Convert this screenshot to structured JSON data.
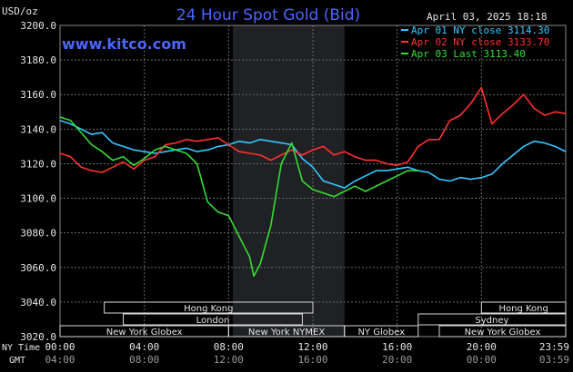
{
  "chart_data": {
    "type": "line",
    "title": "24 Hour Spot Gold (Bid)",
    "ylabel": "USD/oz",
    "watermark": "www.kitco.com",
    "date_label": "April 03, 2025 18:18",
    "ylim": [
      3020,
      3200
    ],
    "y_ticks": [
      "3200.0",
      "3180.0",
      "3160.0",
      "3140.0",
      "3120.0",
      "3100.0",
      "3080.0",
      "3060.0",
      "3040.0",
      "3020.0"
    ],
    "x_axis": {
      "row1_label": "NY Time",
      "row2_label": "GMT",
      "ny_ticks": [
        "00:00",
        "04:00",
        "08:00",
        "12:00",
        "16:00",
        "20:00",
        "23:59"
      ],
      "gmt_ticks": [
        "04:00",
        "08:00",
        "12:00",
        "16:00",
        "20:00",
        "00:00",
        "03:59"
      ],
      "tick_hours": [
        0,
        4,
        8,
        12,
        16,
        20,
        24
      ]
    },
    "grid": true,
    "legend_position": "top-right",
    "colors": {
      "grid": "#6a6a6a",
      "title": "#4a66ff",
      "watermark": "#4a66ff",
      "axis_text": "#e6e6e6",
      "shade": "#1f2124",
      "session_border": "#d8d8d8"
    },
    "legend": [
      {
        "name": "Apr 01 NY close 3114.30",
        "color": "#33c8ff"
      },
      {
        "name": "Apr 02 NY close 3133.70",
        "color": "#ff3030"
      },
      {
        "name": "Apr 03 Last 3113.40",
        "color": "#33dd33"
      }
    ],
    "sessions": [
      {
        "name": "Hong Kong",
        "row": 1,
        "start": 2.1,
        "end": 12.0
      },
      {
        "name": "Hong Kong",
        "row": 1,
        "start": 20.0,
        "end": 24.0
      },
      {
        "name": "London",
        "row": 2,
        "start": 3.0,
        "end": 11.5
      },
      {
        "name": "Sydney",
        "row": 2,
        "start": 17.0,
        "end": 24.0
      },
      {
        "name": "New York Globex",
        "row": 3,
        "start": 0.0,
        "end": 8.0
      },
      {
        "name": "New York NYMEX",
        "row": 3,
        "start": 8.0,
        "end": 13.5
      },
      {
        "name": "NY Globex",
        "row": 3,
        "start": 13.5,
        "end": 17.0
      },
      {
        "name": "New York Globex",
        "row": 3,
        "start": 18.0,
        "end": 24.0
      }
    ],
    "shaded_hours": [
      8.2,
      13.5
    ],
    "series": [
      {
        "name": "Apr 01 NY close 3114.30",
        "color": "#33c8ff",
        "x": [
          0,
          0.5,
          1,
          1.5,
          2,
          2.5,
          3,
          3.5,
          4,
          4.5,
          5,
          5.5,
          6,
          6.5,
          7,
          7.5,
          8,
          8.5,
          9,
          9.5,
          10,
          10.5,
          11,
          11.5,
          12,
          12.5,
          13,
          13.5,
          14,
          14.5,
          15,
          15.5,
          16,
          16.5,
          17,
          17.5,
          18,
          18.5,
          19,
          19.5,
          20,
          20.5,
          21,
          21.5,
          22,
          22.5,
          23,
          23.5,
          24
        ],
        "y": [
          3145,
          3143,
          3140,
          3137,
          3138,
          3132,
          3130,
          3128,
          3127,
          3126,
          3127,
          3128,
          3129,
          3127,
          3128,
          3130,
          3131,
          3133,
          3132,
          3134,
          3133,
          3132,
          3131,
          3123,
          3118,
          3110,
          3108,
          3106,
          3110,
          3113,
          3116,
          3116,
          3117,
          3118,
          3116,
          3115,
          3111,
          3110,
          3112,
          3111,
          3112,
          3114,
          3120,
          3125,
          3130,
          3133,
          3132,
          3130,
          3127
        ]
      },
      {
        "name": "Apr 02 NY close 3133.70",
        "color": "#ff3030",
        "x": [
          0,
          0.5,
          1,
          1.5,
          2,
          2.5,
          3,
          3.5,
          4,
          4.5,
          5,
          5.5,
          6,
          6.5,
          7,
          7.5,
          8,
          8.5,
          9,
          9.5,
          10,
          10.5,
          11,
          11.5,
          12,
          12.5,
          13,
          13.5,
          14,
          14.5,
          15,
          15.5,
          16,
          16.5,
          17,
          17.5,
          18,
          18.5,
          19,
          19.5,
          20,
          20.5,
          21,
          21.5,
          22,
          22.5,
          23,
          23.5,
          24
        ],
        "y": [
          3126,
          3124,
          3118,
          3116,
          3115,
          3118,
          3121,
          3117,
          3122,
          3124,
          3131,
          3132,
          3134,
          3133,
          3134,
          3135,
          3131,
          3127,
          3126,
          3125,
          3122,
          3125,
          3128,
          3125,
          3128,
          3130,
          3125,
          3127,
          3124,
          3122,
          3122,
          3120,
          3119,
          3121,
          3130,
          3134,
          3134,
          3145,
          3148,
          3155,
          3164,
          3143,
          3149,
          3154,
          3160,
          3152,
          3148,
          3150,
          3149
        ]
      },
      {
        "name": "Apr 03 Last 3113.40",
        "color": "#33dd33",
        "x": [
          0,
          0.5,
          1,
          1.5,
          2,
          2.5,
          3,
          3.5,
          4,
          4.5,
          5,
          5.5,
          6,
          6.5,
          7,
          7.5,
          8,
          8.5,
          9,
          9.2,
          9.5,
          10,
          10.5,
          11,
          11.5,
          12,
          12.5,
          13,
          13.5,
          14,
          14.5,
          15,
          15.5,
          16,
          16.5,
          17
        ],
        "y": [
          3147,
          3145,
          3138,
          3131,
          3127,
          3122,
          3124,
          3119,
          3123,
          3128,
          3130,
          3128,
          3126,
          3120,
          3098,
          3092,
          3090,
          3078,
          3066,
          3055,
          3062,
          3084,
          3120,
          3132,
          3110,
          3105,
          3103,
          3101,
          3104,
          3107,
          3104,
          3107,
          3110,
          3113,
          3116,
          3116
        ]
      }
    ]
  }
}
